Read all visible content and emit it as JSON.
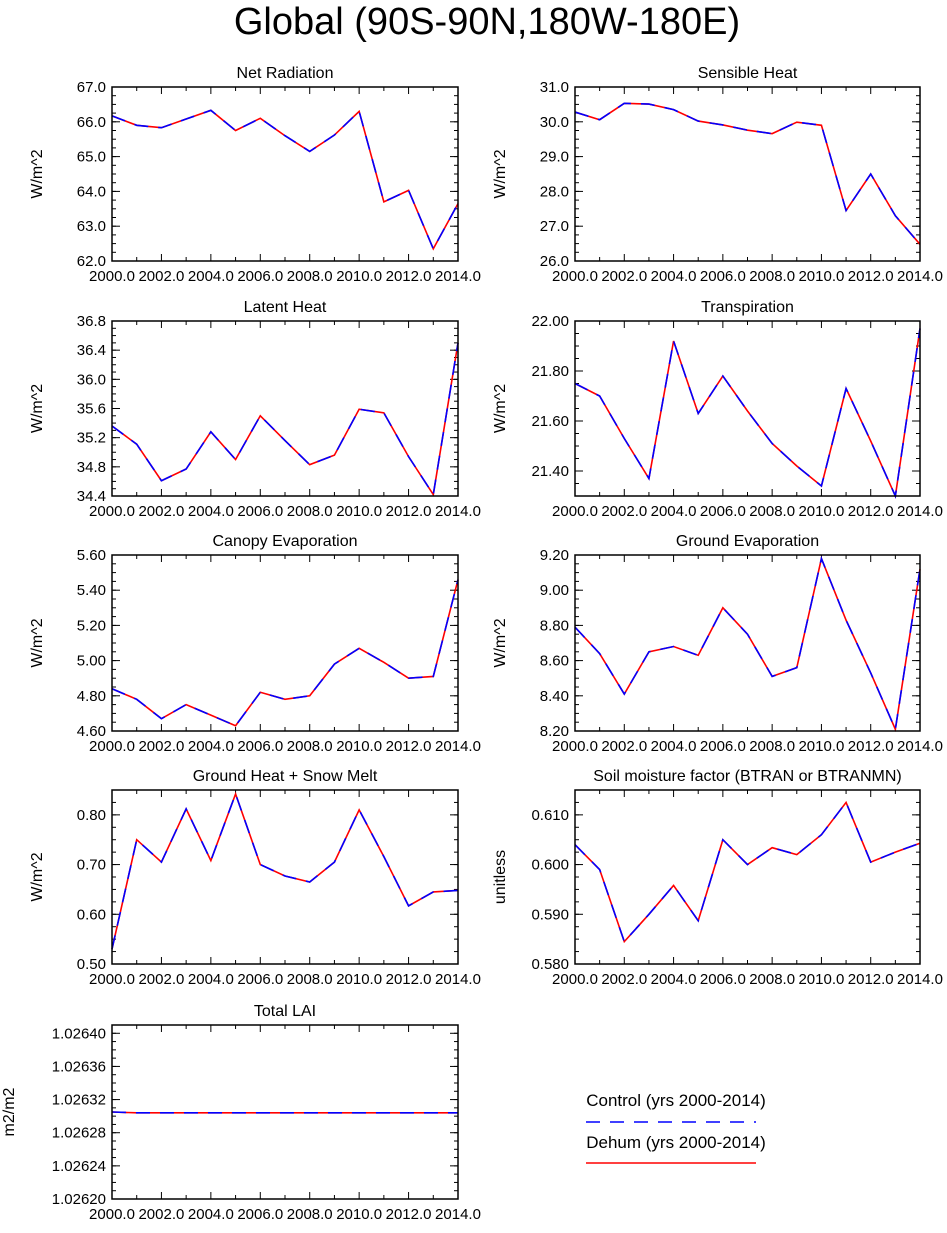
{
  "figure": {
    "title": "Global (90S-90N,180W-180E)"
  },
  "legend": {
    "entries": [
      {
        "label": "Control (yrs 2000-2014)",
        "color": "#0000ff",
        "style": "dashed"
      },
      {
        "label": "Dehum (yrs 2000-2014)",
        "color": "#ff0000",
        "style": "solid"
      }
    ]
  },
  "chart_data": [
    {
      "type": "line",
      "title": "Net Radiation",
      "ylabel": "W/m^2",
      "x": [
        2000,
        2001,
        2002,
        2003,
        2004,
        2005,
        2006,
        2007,
        2008,
        2009,
        2010,
        2011,
        2012,
        2013,
        2014
      ],
      "xlim": [
        2000,
        2014
      ],
      "xticks": [
        "2000.0",
        "2002.0",
        "2004.0",
        "2006.0",
        "2008.0",
        "2010.0",
        "2012.0",
        "2014.0"
      ],
      "ylim": [
        62.0,
        67.0
      ],
      "yticks": [
        "62.0",
        "63.0",
        "64.0",
        "65.0",
        "66.0",
        "67.0"
      ],
      "series": [
        {
          "name": "Control (yrs 2000-2014)",
          "values": [
            66.17,
            65.9,
            65.83,
            66.08,
            66.33,
            65.75,
            66.1,
            65.6,
            65.15,
            65.62,
            66.3,
            63.7,
            64.03,
            62.35,
            63.65
          ]
        },
        {
          "name": "Dehum (yrs 2000-2014)",
          "values": [
            66.17,
            65.9,
            65.83,
            66.08,
            66.33,
            65.75,
            66.1,
            65.6,
            65.15,
            65.62,
            66.3,
            63.7,
            64.03,
            62.35,
            63.65
          ]
        }
      ]
    },
    {
      "type": "line",
      "title": "Sensible Heat",
      "ylabel": "W/m^2",
      "x": [
        2000,
        2001,
        2002,
        2003,
        2004,
        2005,
        2006,
        2007,
        2008,
        2009,
        2010,
        2011,
        2012,
        2013,
        2014
      ],
      "xlim": [
        2000,
        2014
      ],
      "xticks": [
        "2000.0",
        "2002.0",
        "2004.0",
        "2006.0",
        "2008.0",
        "2010.0",
        "2012.0",
        "2014.0"
      ],
      "ylim": [
        26.0,
        31.0
      ],
      "yticks": [
        "26.0",
        "27.0",
        "28.0",
        "29.0",
        "30.0",
        "31.0"
      ],
      "series": [
        {
          "name": "Control (yrs 2000-2014)",
          "values": [
            30.28,
            30.06,
            30.53,
            30.51,
            30.35,
            30.02,
            29.91,
            29.76,
            29.66,
            29.99,
            29.9,
            27.45,
            28.5,
            27.3,
            26.48
          ]
        },
        {
          "name": "Dehum (yrs 2000-2014)",
          "values": [
            30.28,
            30.06,
            30.53,
            30.51,
            30.35,
            30.02,
            29.91,
            29.76,
            29.66,
            29.99,
            29.9,
            27.45,
            28.5,
            27.3,
            26.48
          ]
        }
      ]
    },
    {
      "type": "line",
      "title": "Latent Heat",
      "ylabel": "W/m^2",
      "x": [
        2000,
        2001,
        2002,
        2003,
        2004,
        2005,
        2006,
        2007,
        2008,
        2009,
        2010,
        2011,
        2012,
        2013,
        2014
      ],
      "xlim": [
        2000,
        2014
      ],
      "xticks": [
        "2000.0",
        "2002.0",
        "2004.0",
        "2006.0",
        "2008.0",
        "2010.0",
        "2012.0",
        "2014.0"
      ],
      "ylim": [
        34.4,
        36.8
      ],
      "yticks": [
        "34.4",
        "34.8",
        "35.2",
        "35.6",
        "36.0",
        "36.4",
        "36.8"
      ],
      "series": [
        {
          "name": "Control (yrs 2000-2014)",
          "values": [
            35.36,
            35.11,
            34.61,
            34.77,
            35.28,
            34.9,
            35.5,
            35.16,
            34.83,
            34.96,
            35.59,
            35.54,
            34.94,
            34.42,
            36.5
          ]
        },
        {
          "name": "Dehum (yrs 2000-2014)",
          "values": [
            35.36,
            35.11,
            34.61,
            34.77,
            35.28,
            34.9,
            35.5,
            35.16,
            34.83,
            34.96,
            35.59,
            35.54,
            34.94,
            34.42,
            36.5
          ]
        }
      ]
    },
    {
      "type": "line",
      "title": "Transpiration",
      "ylabel": "W/m^2",
      "x": [
        2000,
        2001,
        2002,
        2003,
        2004,
        2005,
        2006,
        2007,
        2008,
        2009,
        2010,
        2011,
        2012,
        2013,
        2014
      ],
      "xlim": [
        2000,
        2014
      ],
      "xticks": [
        "2000.0",
        "2002.0",
        "2004.0",
        "2006.0",
        "2008.0",
        "2010.0",
        "2012.0",
        "2014.0"
      ],
      "ylim": [
        21.3,
        22.0
      ],
      "yticks": [
        "21.40",
        "21.60",
        "21.80",
        "22.00"
      ],
      "series": [
        {
          "name": "Control (yrs 2000-2014)",
          "values": [
            21.75,
            21.7,
            21.53,
            21.37,
            21.92,
            21.63,
            21.78,
            21.64,
            21.51,
            21.42,
            21.34,
            21.73,
            21.52,
            21.3,
            21.97
          ]
        },
        {
          "name": "Dehum (yrs 2000-2014)",
          "values": [
            21.75,
            21.7,
            21.53,
            21.37,
            21.92,
            21.63,
            21.78,
            21.64,
            21.51,
            21.42,
            21.34,
            21.73,
            21.52,
            21.3,
            21.97
          ]
        }
      ]
    },
    {
      "type": "line",
      "title": "Canopy Evaporation",
      "ylabel": "W/m^2",
      "x": [
        2000,
        2001,
        2002,
        2003,
        2004,
        2005,
        2006,
        2007,
        2008,
        2009,
        2010,
        2011,
        2012,
        2013,
        2014
      ],
      "xlim": [
        2000,
        2014
      ],
      "xticks": [
        "2000.0",
        "2002.0",
        "2004.0",
        "2006.0",
        "2008.0",
        "2010.0",
        "2012.0",
        "2014.0"
      ],
      "ylim": [
        4.6,
        5.6
      ],
      "yticks": [
        "4.60",
        "4.80",
        "5.00",
        "5.20",
        "5.40",
        "5.60"
      ],
      "series": [
        {
          "name": "Control (yrs 2000-2014)",
          "values": [
            4.84,
            4.78,
            4.67,
            4.75,
            4.69,
            4.63,
            4.82,
            4.78,
            4.8,
            4.98,
            5.07,
            4.99,
            4.9,
            4.91,
            5.46
          ]
        },
        {
          "name": "Dehum (yrs 2000-2014)",
          "values": [
            4.84,
            4.78,
            4.67,
            4.75,
            4.69,
            4.63,
            4.82,
            4.78,
            4.8,
            4.98,
            5.07,
            4.99,
            4.9,
            4.91,
            5.46
          ]
        }
      ]
    },
    {
      "type": "line",
      "title": "Ground Evaporation",
      "ylabel": "W/m^2",
      "x": [
        2000,
        2001,
        2002,
        2003,
        2004,
        2005,
        2006,
        2007,
        2008,
        2009,
        2010,
        2011,
        2012,
        2013,
        2014
      ],
      "xlim": [
        2000,
        2014
      ],
      "xticks": [
        "2000.0",
        "2002.0",
        "2004.0",
        "2006.0",
        "2008.0",
        "2010.0",
        "2012.0",
        "2014.0"
      ],
      "ylim": [
        8.2,
        9.2
      ],
      "yticks": [
        "8.20",
        "8.40",
        "8.60",
        "8.80",
        "9.00",
        "9.20"
      ],
      "series": [
        {
          "name": "Control (yrs 2000-2014)",
          "values": [
            8.79,
            8.64,
            8.41,
            8.65,
            8.68,
            8.63,
            8.9,
            8.75,
            8.51,
            8.56,
            9.18,
            8.83,
            8.53,
            8.21,
            9.12
          ]
        },
        {
          "name": "Dehum (yrs 2000-2014)",
          "values": [
            8.79,
            8.64,
            8.41,
            8.65,
            8.68,
            8.63,
            8.9,
            8.75,
            8.51,
            8.56,
            9.18,
            8.83,
            8.53,
            8.21,
            9.12
          ]
        }
      ]
    },
    {
      "type": "line",
      "title": "Ground Heat + Snow Melt",
      "ylabel": "W/m^2",
      "x": [
        2000,
        2001,
        2002,
        2003,
        2004,
        2005,
        2006,
        2007,
        2008,
        2009,
        2010,
        2011,
        2012,
        2013,
        2014
      ],
      "xlim": [
        2000,
        2014
      ],
      "xticks": [
        "2000.0",
        "2002.0",
        "2004.0",
        "2006.0",
        "2008.0",
        "2010.0",
        "2012.0",
        "2014.0"
      ],
      "ylim": [
        0.5,
        0.85
      ],
      "yticks": [
        "0.50",
        "0.60",
        "0.70",
        "0.80"
      ],
      "series": [
        {
          "name": "Control (yrs 2000-2014)",
          "values": [
            0.53,
            0.75,
            0.705,
            0.812,
            0.708,
            0.842,
            0.7,
            0.677,
            0.665,
            0.705,
            0.81,
            0.716,
            0.617,
            0.645,
            0.648
          ]
        },
        {
          "name": "Dehum (yrs 2000-2014)",
          "values": [
            0.53,
            0.75,
            0.705,
            0.812,
            0.708,
            0.842,
            0.7,
            0.677,
            0.665,
            0.705,
            0.81,
            0.716,
            0.617,
            0.645,
            0.648
          ]
        }
      ]
    },
    {
      "type": "line",
      "title": "Soil moisture factor (BTRAN or BTRANMN)",
      "ylabel": "unitless",
      "x": [
        2000,
        2001,
        2002,
        2003,
        2004,
        2005,
        2006,
        2007,
        2008,
        2009,
        2010,
        2011,
        2012,
        2013,
        2014
      ],
      "xlim": [
        2000,
        2014
      ],
      "xticks": [
        "2000.0",
        "2002.0",
        "2004.0",
        "2006.0",
        "2008.0",
        "2010.0",
        "2012.0",
        "2014.0"
      ],
      "ylim": [
        0.58,
        0.615
      ],
      "yticks": [
        "0.580",
        "0.590",
        "0.600",
        "0.610"
      ],
      "series": [
        {
          "name": "Control (yrs 2000-2014)",
          "values": [
            0.604,
            0.599,
            0.5845,
            0.59,
            0.5958,
            0.5887,
            0.605,
            0.6,
            0.6034,
            0.602,
            0.606,
            0.6125,
            0.6005,
            0.6025,
            0.6043
          ]
        },
        {
          "name": "Dehum (yrs 2000-2014)",
          "values": [
            0.604,
            0.599,
            0.5845,
            0.59,
            0.5958,
            0.5887,
            0.605,
            0.6,
            0.6034,
            0.602,
            0.606,
            0.6125,
            0.6005,
            0.6025,
            0.6043
          ]
        }
      ]
    },
    {
      "type": "line",
      "title": "Total LAI",
      "ylabel": "m2/m2",
      "x": [
        2000,
        2001,
        2002,
        2003,
        2004,
        2005,
        2006,
        2007,
        2008,
        2009,
        2010,
        2011,
        2012,
        2013,
        2014
      ],
      "xlim": [
        2000,
        2014
      ],
      "xticks": [
        "2000.0",
        "2002.0",
        "2004.0",
        "2006.0",
        "2008.0",
        "2010.0",
        "2012.0",
        "2014.0"
      ],
      "ylim": [
        1.0262,
        1.02641
      ],
      "yticks": [
        "1.02620",
        "1.02624",
        "1.02628",
        "1.02632",
        "1.02636",
        "1.02640"
      ],
      "series": [
        {
          "name": "Control (yrs 2000-2014)",
          "values": [
            1.026305,
            1.026304,
            1.026304,
            1.026304,
            1.026304,
            1.026304,
            1.026304,
            1.026304,
            1.026304,
            1.026304,
            1.026304,
            1.026304,
            1.026304,
            1.026304,
            1.026304
          ]
        },
        {
          "name": "Dehum (yrs 2000-2014)",
          "values": [
            1.026305,
            1.026304,
            1.026304,
            1.026304,
            1.026304,
            1.026304,
            1.026304,
            1.026304,
            1.026304,
            1.026304,
            1.026304,
            1.026304,
            1.026304,
            1.026304,
            1.026304
          ]
        }
      ]
    }
  ]
}
